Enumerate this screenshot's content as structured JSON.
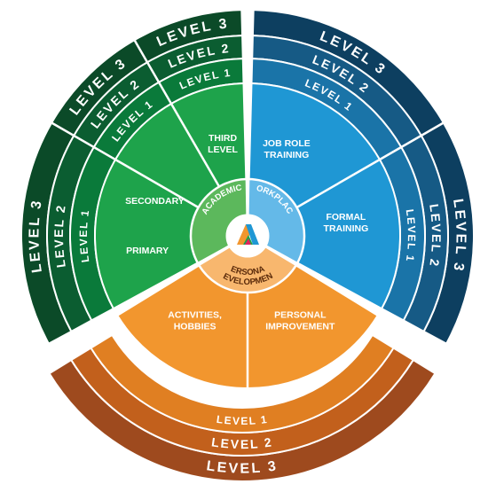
{
  "diagram": {
    "level_labels": [
      "LEVEL 1",
      "LEVEL 2",
      "LEVEL 3"
    ],
    "categories": [
      {
        "key": "academic",
        "name": "ACADEMIC",
        "colors": [
          "#5cb85c",
          "#1ea34b",
          "#0a7a3a",
          "#0b5d31",
          "#0b4a28"
        ],
        "sectors": [
          [
            "THIRD",
            "LEVEL"
          ],
          [
            "SECONDARY"
          ],
          [
            "PRIMARY"
          ]
        ]
      },
      {
        "key": "workplace",
        "name": "WORKPLACE",
        "colors": [
          "#64b9e8",
          "#1f97d4",
          "#1a74a8",
          "#165a85",
          "#0d3f60"
        ],
        "sectors": [
          [
            "JOB ROLE",
            "TRAINING"
          ],
          [
            "FORMAL",
            "TRAINING"
          ]
        ]
      },
      {
        "key": "personal",
        "name": "PERSONAL DEVELOPMENT",
        "name_lines": [
          "PERSONAL",
          "DEVELOPMENT"
        ],
        "colors": [
          "#f8b76e",
          "#f2962e",
          "#e07f22",
          "#c2601c",
          "#9e4a1e"
        ],
        "sectors": [
          [
            "ACTIVITIES,",
            "HOBBIES"
          ],
          [
            "PERSONAL",
            "IMPROVEMENT"
          ]
        ]
      }
    ]
  }
}
